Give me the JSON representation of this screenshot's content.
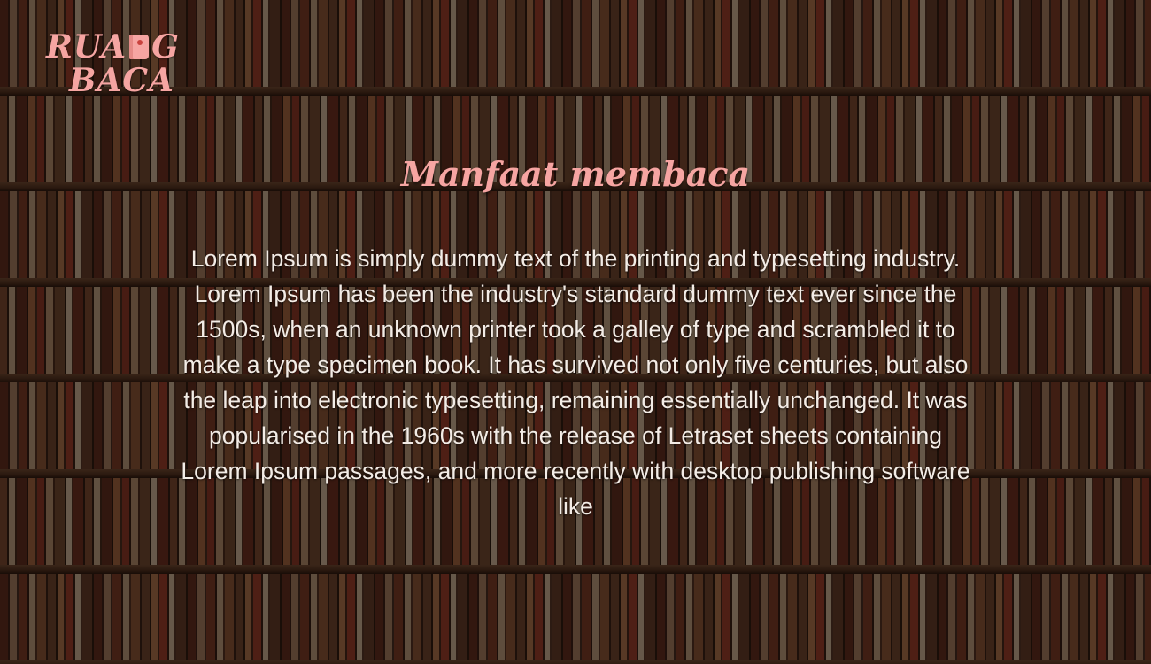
{
  "logo": {
    "line1_prefix": "RUA",
    "line1_suffix": "G",
    "line2": "BACA",
    "icon": "book-icon"
  },
  "main": {
    "title": "Manfaat membaca",
    "body": "Lorem Ipsum is simply dummy text of the printing and typesetting industry. Lorem Ipsum has been the industry's standard dummy text ever since the 1500s, when an unknown printer took a galley of type and scrambled it to make a type specimen book. It has survived not only five centuries, but also the leap into electronic typesetting, remaining essentially unchanged. It was popularised in the 1960s with the release of Letraset sheets containing Lorem Ipsum passages, and more recently with desktop publishing software like"
  },
  "colors": {
    "accent": "#f6a5a2",
    "text": "#f3ece6"
  }
}
